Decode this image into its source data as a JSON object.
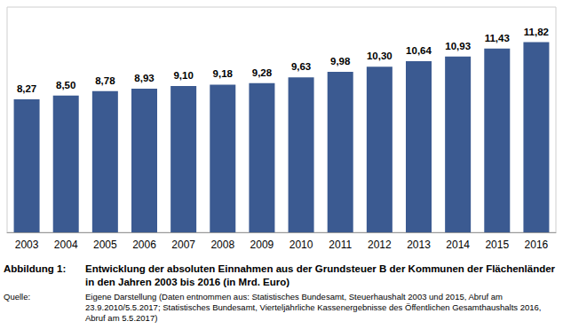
{
  "chart_data": {
    "type": "bar",
    "title_label": "Abbildung 1:",
    "title": "Entwicklung der absoluten Einnahmen aus der Grundsteuer B der Kommunen der Flächenländer in den Jahren 2003 bis 2016 (in Mrd. Euro)",
    "source_label": "Quelle:",
    "source": "Eigene Darstellung (Daten entnommen aus: Statistisches Bundesamt, Steuerhaushalt 2003 und 2015, Abruf am 23.9.2010/5.5.2017;  Statistisches Bundesamt, Vierteljährliche Kassenergebnisse des Öffentlichen Gesamthaushalts 2016, Abruf am 5.5.2017)",
    "categories": [
      "2003",
      "2004",
      "2005",
      "2006",
      "2007",
      "2008",
      "2009",
      "2010",
      "2011",
      "2012",
      "2013",
      "2014",
      "2015",
      "2016"
    ],
    "values": [
      8.27,
      8.5,
      8.78,
      8.93,
      9.1,
      9.18,
      9.28,
      9.63,
      9.98,
      10.3,
      10.64,
      10.93,
      11.43,
      11.82
    ],
    "value_labels": [
      "8,27",
      "8,50",
      "8,78",
      "8,93",
      "9,10",
      "9,18",
      "9,28",
      "9,63",
      "9,98",
      "10,30",
      "10,64",
      "10,93",
      "11,43",
      "11,82"
    ],
    "color": "#3b5a91",
    "data_labels": true,
    "tick_labels": "x",
    "grid": false,
    "ylim": [
      0,
      14
    ],
    "yticks": [
      0,
      14
    ]
  }
}
